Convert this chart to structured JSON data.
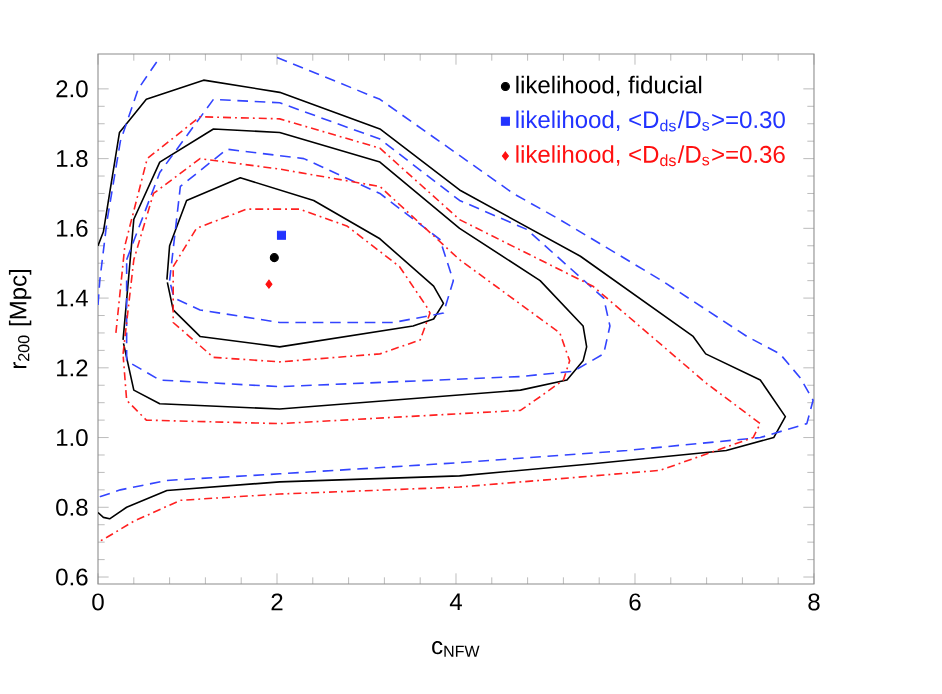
{
  "chart_data": {
    "type": "line",
    "xlabel": "c$_{NFW}$",
    "ylabel": "r$_{200}$ [Mpc]",
    "xlim": [
      0,
      8
    ],
    "ylim": [
      0.58,
      2.1
    ],
    "xticks": [
      0,
      2,
      4,
      6,
      8
    ],
    "yticks": [
      0.6,
      0.8,
      {
        "value": 1.0,
        "label": "1.0"
      },
      1.2,
      1.4,
      1.6,
      1.8,
      {
        "value": 2.0,
        "label": "2.0"
      }
    ],
    "legend": "top right",
    "marker": "none",
    "series": [
      {
        "color": "#000000",
        "line_style": "solid",
        "x": [
          0.0,
          0.06,
          0.24,
          0.54,
          1.18,
          2.03,
          3.15,
          4.04,
          5.39,
          6.65,
          6.79,
          7.4,
          7.68,
          7.55,
          7.02,
          5.53,
          4.04,
          2.03,
          0.77,
          0.32,
          0.13,
          0.06,
          0.0
        ],
        "values": [
          1.55,
          1.59,
          1.875,
          1.97,
          2.025,
          1.99,
          1.885,
          1.71,
          1.52,
          1.29,
          1.24,
          1.165,
          1.06,
          1.0,
          0.963,
          0.925,
          0.89,
          0.873,
          0.848,
          0.8,
          0.767,
          0.771,
          0.785
        ]
      },
      {
        "color": "#000000",
        "line_style": "solid",
        "x": [
          0.28,
          0.4,
          0.69,
          1.29,
          2.03,
          3.15,
          4.04,
          4.94,
          5.42,
          5.46,
          5.42,
          5.24,
          4.72,
          2.03,
          0.69,
          0.4,
          0.285
        ],
        "values": [
          1.28,
          1.626,
          1.79,
          1.885,
          1.875,
          1.79,
          1.6,
          1.45,
          1.32,
          1.26,
          1.22,
          1.165,
          1.136,
          1.082,
          1.097,
          1.136,
          1.27
        ]
      },
      {
        "color": "#000000",
        "line_style": "solid",
        "x": [
          0.77,
          0.8,
          0.99,
          1.59,
          2.41,
          3.15,
          3.75,
          3.86,
          3.75,
          3.52,
          2.03,
          1.14,
          0.84,
          0.775
        ],
        "values": [
          1.453,
          1.55,
          1.68,
          1.745,
          1.68,
          1.57,
          1.434,
          1.385,
          1.34,
          1.32,
          1.26,
          1.29,
          1.366,
          1.445
        ]
      },
      {
        "color": "#3344ff",
        "line_style": "dashed",
        "x": [
          0.0,
          0.02,
          0.1,
          0.25,
          0.45,
          0.69,
          1.3,
          2.0,
          3.15,
          4.64,
          5.16,
          6.3,
          7.25,
          7.62,
          7.85,
          7.99,
          7.92,
          7.4,
          5.91,
          4.04,
          2.03,
          0.77,
          0.25,
          0.02
        ],
        "values": [
          1.38,
          1.45,
          1.62,
          1.85,
          2.0,
          2.09,
          null,
          2.09,
          1.97,
          1.7,
          1.625,
          1.45,
          1.29,
          1.24,
          1.17,
          1.107,
          1.04,
          1.0,
          0.963,
          0.928,
          0.896,
          0.877,
          0.85,
          0.83
        ]
      },
      {
        "color": "#3344ff",
        "line_style": "dashed",
        "x": [
          0.32,
          0.69,
          1.29,
          2.03,
          3.15,
          4.04,
          4.79,
          5.65,
          5.72,
          5.65,
          5.31,
          4.72,
          2.03,
          0.69,
          0.32,
          0.32
        ],
        "values": [
          1.51,
          1.76,
          1.97,
          1.96,
          1.856,
          1.68,
          1.597,
          1.4,
          1.32,
          1.24,
          1.19,
          1.175,
          1.146,
          1.165,
          1.22,
          1.5
        ]
      },
      {
        "color": "#3344ff",
        "line_style": "dashed",
        "x": [
          0.8,
          0.92,
          1.44,
          2.3,
          3.15,
          3.82,
          3.97,
          3.86,
          3.3,
          2.03,
          1.14,
          0.85,
          0.805
        ],
        "values": [
          1.45,
          1.72,
          1.827,
          1.8,
          1.7,
          1.568,
          1.45,
          1.357,
          1.33,
          1.33,
          1.366,
          1.4,
          1.445
        ]
      },
      {
        "color": "#ff2020",
        "line_style": "dashdot",
        "x": [
          0.2,
          0.3,
          0.55,
          1.14,
          2.03,
          3.15,
          4.04,
          5.53,
          6.8,
          7.4,
          7.32,
          6.28,
          4.04,
          2.03,
          0.92,
          0.4,
          0.1,
          0.0
        ],
        "values": [
          1.3,
          1.55,
          1.8,
          1.92,
          1.914,
          1.83,
          1.625,
          1.434,
          1.155,
          1.04,
          1.0,
          0.906,
          0.858,
          0.838,
          0.82,
          0.76,
          0.714,
          0.7
        ]
      },
      {
        "color": "#ff2020",
        "line_style": "dashdot",
        "x": [
          0.28,
          0.4,
          0.62,
          1.14,
          2.03,
          3.15,
          4.04,
          5.16,
          5.27,
          5.2,
          4.94,
          4.72,
          2.03,
          0.54,
          0.32,
          0.282
        ],
        "values": [
          1.24,
          1.51,
          1.7,
          1.8,
          1.77,
          1.72,
          1.51,
          1.3,
          1.22,
          1.165,
          1.117,
          1.078,
          1.04,
          1.05,
          1.107,
          1.232
        ]
      },
      {
        "color": "#ff2020",
        "line_style": "dashdot",
        "x": [
          0.84,
          1.1,
          1.66,
          2.25,
          2.78,
          3.37,
          3.67,
          3.71,
          3.6,
          3.15,
          2.03,
          1.29,
          0.84,
          0.84
        ],
        "values": [
          1.49,
          1.6,
          1.655,
          1.655,
          1.607,
          1.49,
          1.376,
          1.357,
          1.28,
          1.24,
          1.217,
          1.23,
          1.33,
          1.48
        ]
      },
      {
        "type": "scatter",
        "name": "likelihood, fiducial",
        "color": "#000000",
        "marker": "circle",
        "x": [
          1.97
        ],
        "values": [
          1.516
        ]
      },
      {
        "type": "scatter",
        "name": "likelihood, <D$_{ds}$/D$_{s}$>=0.30",
        "color": "#2233ff",
        "marker": "square",
        "x": [
          2.05
        ],
        "values": [
          1.58
        ]
      },
      {
        "type": "scatter",
        "name": "likelihood, <D$_{ds}$/D$_{s}$>=0.36",
        "color": "#ff1010",
        "marker": "diamond",
        "x": [
          1.91
        ],
        "values": [
          1.44
        ]
      }
    ]
  }
}
